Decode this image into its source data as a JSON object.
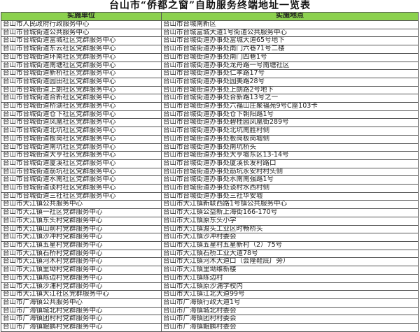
{
  "title": "台山市“侨都之窗”自助服务终端地址一览表",
  "headers": [
    "实施单位",
    "实施地点"
  ],
  "accent_color": "#8cd14f",
  "rows": [
    [
      "台山市人民政府行政服务中心",
      "台山市台城南新区"
    ],
    [
      "台山市台城街道公共服务中心",
      "台山市台城富城大道1号街道公共服务中心"
    ],
    [
      "台山市台城街道富城社区党群服务中心",
      "台山市台城街道办事处富城大道65号地下"
    ],
    [
      "台山市台城街道东云社区党群服务中心",
      "台山市台城街道办事处南门六巷71号二楼"
    ],
    [
      "台山市台城街道环南社区党群服务中心",
      "台山市台城街道办事处南门四巷1号"
    ],
    [
      "台山市台城街道南塘社区党群服务中心",
      "台山市台城街道办事处龙舟路一号南塘社区"
    ],
    [
      "台山市台城街道新桥社区党群服务中心",
      "台山市台城街道办事处仁孝路17号"
    ],
    [
      "台山市台城街道园田社区党群服务中心",
      "台山市台城街道办事处园美路28号"
    ],
    [
      "台山市台城街道上朗社区党群服务中心",
      "台山市台城街道办事处上朗路2号地下"
    ],
    [
      "台山市台城街道合新社区党群服务中心",
      "台山市台城街道办事处合新路13号之一"
    ],
    [
      "台山市台城街道桥湖社区党群服务中心",
      "台山市台城街道办事处六福山庄聚福苑9号C座103卡"
    ],
    [
      "台山市台城街道仓下社区党群服务中心",
      "台山市台城街道办事处仓下朝阳路1号"
    ],
    [
      "台山市台城街道凤凰社区党群服务中心",
      "台山市台城街道办事处碧桂园凤凰街289号"
    ],
    [
      "台山市台城街道北坑社区党群服务中心",
      "台山市台城街道办事处北坑南胜村侧"
    ],
    [
      "台山市台城街道板岗社区党群服务中心",
      "台山市台城街道办事处板岗板岗墟侧"
    ],
    [
      "台山市台城街道南坑社区党群服务中心",
      "台山市台城街道办事处南坑桥头"
    ],
    [
      "台山市台城街道大亨社区党群服务中心",
      "台山市台城街道办事处大亨墟东区13-14号"
    ],
    [
      "台山市台城街道厦溪社区党群服务中心",
      "台山市台城街道办事处厦溪长发村路口"
    ],
    [
      "台山市台城街道筋坑社区党群服务中心",
      "台山市台城街道办事处筋坑永安村村头侧"
    ],
    [
      "台山市台城街道水南社区党群服务中心",
      "台山市台城街道办事处水南南强路1号"
    ],
    [
      "台山市台城街道谈村社区党群服务中心",
      "台山市台城街道办事处谈村水西村侧"
    ],
    [
      "台山市台城街道三社社区党群服务中心",
      "台山市台城街道办事处三社华安墟"
    ],
    [
      "台山市大江镇公共服务中心",
      "台山市大江镇新联西路1号镇公共服务中心"
    ],
    [
      "台山市大江镇一社区党群服务中心",
      "台山市大江镇公益新上海街166-170号"
    ],
    [
      "台山市大江镇东头村党群服务中心",
      "台山市大江镇原东头小学"
    ],
    [
      "台山市大江镇山前村党群服务中心",
      "台山市大江镇渡头工业区时畅桥头"
    ],
    [
      "台山市大江镇沙冲村党群服务中心",
      "台山市大江镇沙冲村委会"
    ],
    [
      "台山市大江镇五星村党群服务中心",
      "台山市大江镇五星村五星新村（2）75号"
    ],
    [
      "台山市大江镇石桥村党群服务中心",
      "台山市大江镇石桥工业大道78号"
    ],
    [
      "台山市大江镇河木村党群服务中心",
      "台山市大江镇河木大道口（会隆鞋底厂旁）"
    ],
    [
      "台山市大江镇里坳村党群服务中心",
      "台山市大江镇里坳维新楼"
    ],
    [
      "台山市大江镇陈边村党群服务中心",
      "台山市大江镇陈边村"
    ],
    [
      "台山市大江镇沙浦村党群服务中心",
      "台山市大江镇原沙浦学校内"
    ],
    [
      "台山市大江镇大江社区党群服务中心",
      "台山市大江镇江北大道99号"
    ],
    [
      "台山市广海镇公共服务中心",
      "台山市广海镇行政大道1号"
    ],
    [
      "台山市广海镇城北村党群服务中心",
      "台山市广海镇城北村委会"
    ],
    [
      "台山市广海镇团村村党群服务中心",
      "台山市广海镇团村村委会"
    ],
    [
      "台山市广海镇鲲鹏村党群服务中心",
      "台山市广海镇鲲鹏村委会"
    ]
  ]
}
